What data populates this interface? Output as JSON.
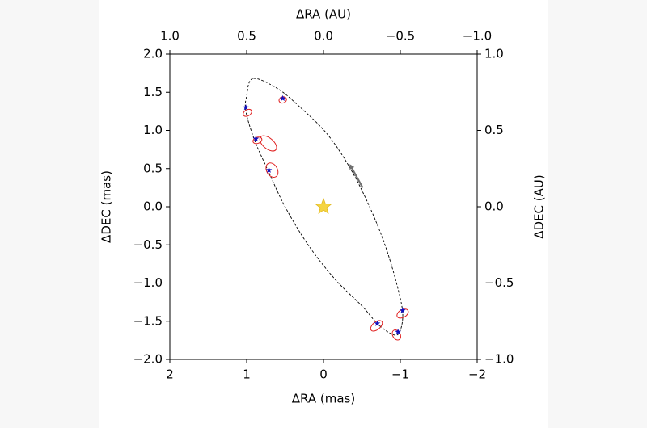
{
  "chart_data": {
    "type": "scatter",
    "x_label": "ΔRA (mas)",
    "x2_label": "ΔRA (AU)",
    "y_label": "ΔDEC (mas)",
    "y2_label": "ΔDEC (AU)",
    "xlim": [
      2,
      -2
    ],
    "xticks": [
      2,
      1,
      0,
      {
        "value": -1,
        "label": "−1"
      },
      {
        "value": -2,
        "label": "−2"
      }
    ],
    "x2lim": [
      1,
      -1
    ],
    "x2ticks": [
      {
        "value": 1,
        "label": "1.0"
      },
      0.5,
      {
        "value": 0,
        "label": "0.0"
      },
      {
        "value": -0.5,
        "label": "−0.5"
      },
      {
        "value": -1,
        "label": "−1.0"
      }
    ],
    "ylim": [
      -2,
      2
    ],
    "yticks": [
      {
        "value": -2,
        "label": "−2.0"
      },
      {
        "value": -1.5,
        "label": "−1.5"
      },
      {
        "value": -1,
        "label": "−1.0"
      },
      {
        "value": -0.5,
        "label": "−0.5"
      },
      {
        "value": 0,
        "label": "0.0"
      },
      0.5,
      {
        "value": 1,
        "label": "1.0"
      },
      1.5,
      {
        "value": 2,
        "label": "2.0"
      }
    ],
    "y2lim": [
      -1,
      1
    ],
    "y2ticks": [
      {
        "value": -1,
        "label": "−1.0"
      },
      {
        "value": -0.5,
        "label": "−0.5"
      },
      {
        "value": 0,
        "label": "0.0"
      },
      0.5,
      {
        "value": 1,
        "label": "1.0"
      }
    ],
    "series": [
      {
        "style": "orbit",
        "color": "#000000",
        "x": [
          0.92,
          1.0,
          1.01,
          0.9,
          0.72,
          0.5,
          0.2,
          -0.15,
          -0.5,
          -0.72,
          -0.92,
          -1.0,
          -1.03,
          -0.95,
          -0.8,
          -0.6,
          -0.35,
          -0.05,
          0.3,
          0.6
        ],
        "y": [
          1.68,
          1.45,
          1.25,
          0.88,
          0.47,
          0.0,
          -0.5,
          -0.95,
          -1.3,
          -1.55,
          -1.68,
          -1.62,
          -1.38,
          -1.0,
          -0.5,
          0.0,
          0.5,
          0.95,
          1.3,
          1.55
        ]
      },
      {
        "style": "ellipse",
        "color": "#e02020",
        "x": [
          0.99,
          0.53,
          0.86,
          0.72,
          0.67,
          -0.69,
          -1.03,
          -0.95
        ],
        "y": [
          1.23,
          1.4,
          0.87,
          0.83,
          0.48,
          -1.56,
          -1.4,
          -1.68
        ],
        "rx": [
          0.06,
          0.05,
          0.06,
          0.13,
          0.1,
          0.09,
          0.08,
          0.07
        ],
        "ry": [
          0.04,
          0.04,
          0.04,
          0.07,
          0.07,
          0.05,
          0.05,
          0.05
        ],
        "angle": [
          -30,
          -20,
          -20,
          40,
          60,
          -40,
          -30,
          60
        ]
      },
      {
        "style": "star",
        "color": "#1010c0",
        "x": [
          1.01,
          0.53,
          0.88,
          0.71,
          -0.7,
          -1.03,
          -0.97
        ],
        "y": [
          1.3,
          1.42,
          0.89,
          0.48,
          -1.53,
          -1.36,
          -1.64
        ]
      },
      {
        "style": "host",
        "color": "#f5d442",
        "x": [
          0
        ],
        "y": [
          0
        ]
      },
      {
        "style": "arrow",
        "color": "#707070",
        "x": [
          -0.51,
          -0.34
        ],
        "y": [
          0.25,
          0.56
        ]
      }
    ]
  }
}
